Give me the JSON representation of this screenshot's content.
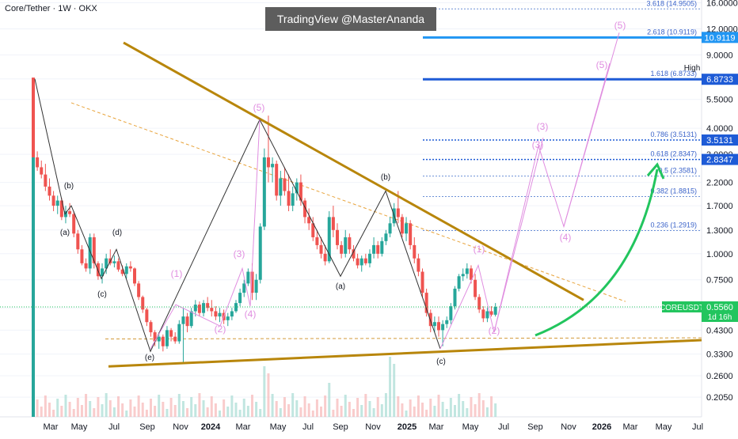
{
  "header": {
    "ticker": "Core/Tether · 1W · OKX",
    "watermark": "TradingView @MasterAnanda"
  },
  "chart_data": {
    "type": "candlestick",
    "title": "Core/Tether · 1W · OKX",
    "yscale": "log",
    "ylim": [
      0.165,
      16.5
    ],
    "y_ticks": [
      "16.0000",
      "12.0000",
      "9.0000",
      "6.9000",
      "5.5000",
      "4.0000",
      "3.0000",
      "2.2000",
      "1.7000",
      "1.3000",
      "1.0000",
      "0.7500",
      "0.5500",
      "0.4300",
      "0.3300",
      "0.2600",
      "0.2050"
    ],
    "x_ticks": [
      "Mar",
      "May",
      "Jul",
      "Sep",
      "Nov",
      "2024",
      "Mar",
      "May",
      "Jul",
      "Sep",
      "Nov",
      "2025",
      "Mar",
      "May",
      "Jul",
      "Sep",
      "Nov",
      "2026",
      "Mar",
      "May",
      "Jul"
    ],
    "last_price": {
      "symbol": "COREUSDT",
      "value": "0.5560",
      "countdown": "1d 16h",
      "color": "#22c55e"
    },
    "high_label": {
      "label": "High",
      "value": "6.9000"
    },
    "fib_levels": [
      {
        "ratio": "3.618",
        "price": "14.9505",
        "label": "3.618 (14.9505)"
      },
      {
        "ratio": "2.618",
        "price": "10.9119",
        "label": "2.618 (10.9119)",
        "tag": "10.9119",
        "color": "#2196f3"
      },
      {
        "ratio": "1.618",
        "price": "6.8733",
        "label": "1.618 (6.8733)",
        "tag": "6.8733",
        "color": "#1e5bd6"
      },
      {
        "ratio": "0.786",
        "price": "3.5131",
        "label": "0.786 (3.5131)",
        "tag": "3.5131",
        "color": "#1e5bd6"
      },
      {
        "ratio": "0.618",
        "price": "2.8347",
        "label": "0.618 (2.8347)",
        "tag": "2.8347",
        "color": "#1e5bd6"
      },
      {
        "ratio": "0.5",
        "price": "2.3581",
        "label": "0.5 (2.3581)"
      },
      {
        "ratio": "0.382",
        "price": "1.8815",
        "label": "0.382 (1.8815)"
      },
      {
        "ratio": "0.236",
        "price": "1.2919",
        "label": "0.236 (1.2919)"
      }
    ],
    "wave_labels_black": [
      "(b)",
      "(a)",
      "(d)",
      "(c)",
      "(e)",
      "(b)",
      "(a)",
      "(c)"
    ],
    "wave_labels_pink": [
      "(1)",
      "(2)",
      "(3)",
      "(4)",
      "(5)",
      "(1)",
      "(2)",
      "(3)",
      "(3)",
      "(4)",
      "(5)",
      "(5)"
    ],
    "colors": {
      "up": "#26a69a",
      "down": "#ef5350",
      "trendline": "#b8860b",
      "wave": "#e08ee0",
      "arrow": "#22c55e"
    },
    "candles": [
      [
        7.0,
        7.0,
        2.5,
        2.9
      ],
      [
        2.9,
        3.1,
        2.5,
        2.6
      ],
      [
        2.6,
        2.8,
        2.3,
        2.4
      ],
      [
        2.4,
        2.7,
        2.0,
        2.1
      ],
      [
        2.1,
        2.3,
        1.8,
        1.9
      ],
      [
        1.9,
        2.0,
        1.6,
        1.7
      ],
      [
        1.7,
        1.9,
        1.55,
        1.8
      ],
      [
        1.8,
        1.85,
        1.45,
        1.5
      ],
      [
        1.5,
        1.7,
        1.4,
        1.6
      ],
      [
        1.6,
        1.75,
        1.5,
        1.55
      ],
      [
        1.55,
        1.6,
        1.2,
        1.25
      ],
      [
        1.25,
        1.3,
        1.0,
        1.05
      ],
      [
        1.05,
        1.1,
        0.88,
        0.9
      ],
      [
        0.9,
        0.95,
        0.82,
        0.85
      ],
      [
        0.85,
        1.25,
        0.8,
        1.2
      ],
      [
        1.2,
        1.25,
        0.85,
        0.9
      ],
      [
        0.9,
        0.92,
        0.75,
        0.78
      ],
      [
        0.78,
        0.9,
        0.72,
        0.85
      ],
      [
        0.85,
        1.0,
        0.8,
        0.95
      ],
      [
        0.95,
        1.05,
        0.88,
        0.9
      ],
      [
        0.9,
        0.98,
        0.86,
        0.92
      ],
      [
        0.92,
        0.95,
        0.82,
        0.84
      ],
      [
        0.84,
        0.88,
        0.78,
        0.8
      ],
      [
        0.8,
        0.9,
        0.76,
        0.87
      ],
      [
        0.87,
        0.92,
        0.82,
        0.85
      ],
      [
        0.85,
        0.86,
        0.7,
        0.72
      ],
      [
        0.72,
        0.74,
        0.6,
        0.62
      ],
      [
        0.62,
        0.63,
        0.52,
        0.54
      ],
      [
        0.54,
        0.55,
        0.45,
        0.47
      ],
      [
        0.47,
        0.48,
        0.4,
        0.42
      ],
      [
        0.42,
        0.43,
        0.36,
        0.38
      ],
      [
        0.38,
        0.42,
        0.35,
        0.4
      ],
      [
        0.4,
        0.41,
        0.34,
        0.36
      ],
      [
        0.36,
        0.45,
        0.35,
        0.43
      ],
      [
        0.43,
        0.44,
        0.38,
        0.4
      ],
      [
        0.4,
        0.42,
        0.37,
        0.38
      ],
      [
        0.38,
        0.48,
        0.37,
        0.46
      ],
      [
        0.46,
        0.55,
        0.3,
        0.5
      ],
      [
        0.5,
        0.52,
        0.42,
        0.45
      ],
      [
        0.45,
        0.55,
        0.44,
        0.53
      ],
      [
        0.53,
        0.6,
        0.5,
        0.57
      ],
      [
        0.57,
        0.59,
        0.5,
        0.52
      ],
      [
        0.52,
        0.6,
        0.5,
        0.58
      ],
      [
        0.58,
        0.62,
        0.53,
        0.55
      ],
      [
        0.55,
        0.6,
        0.5,
        0.53
      ],
      [
        0.53,
        0.56,
        0.48,
        0.5
      ],
      [
        0.5,
        0.55,
        0.47,
        0.52
      ],
      [
        0.52,
        0.54,
        0.46,
        0.48
      ],
      [
        0.48,
        0.52,
        0.45,
        0.5
      ],
      [
        0.5,
        0.55,
        0.48,
        0.53
      ],
      [
        0.53,
        0.6,
        0.52,
        0.58
      ],
      [
        0.58,
        0.68,
        0.56,
        0.65
      ],
      [
        0.65,
        0.75,
        0.62,
        0.72
      ],
      [
        0.72,
        0.85,
        0.7,
        0.82
      ],
      [
        0.82,
        0.9,
        0.6,
        0.65
      ],
      [
        0.65,
        0.8,
        0.6,
        0.75
      ],
      [
        0.75,
        1.4,
        0.72,
        1.35
      ],
      [
        1.35,
        3.2,
        1.3,
        2.9
      ],
      [
        2.9,
        4.6,
        2.2,
        2.6
      ],
      [
        2.6,
        2.9,
        2.2,
        2.7
      ],
      [
        2.7,
        2.8,
        1.8,
        1.9
      ],
      [
        1.9,
        2.5,
        1.7,
        2.3
      ],
      [
        2.3,
        2.6,
        1.9,
        2.0
      ],
      [
        2.0,
        2.4,
        1.6,
        1.7
      ],
      [
        1.7,
        2.1,
        1.6,
        1.95
      ],
      [
        1.95,
        2.3,
        1.8,
        2.2
      ],
      [
        2.2,
        2.4,
        1.7,
        1.8
      ],
      [
        1.8,
        1.85,
        1.4,
        1.5
      ],
      [
        1.5,
        1.65,
        1.3,
        1.4
      ],
      [
        1.4,
        1.5,
        1.15,
        1.2
      ],
      [
        1.2,
        1.3,
        1.05,
        1.1
      ],
      [
        1.1,
        1.2,
        0.95,
        1.0
      ],
      [
        1.0,
        1.1,
        0.88,
        0.92
      ],
      [
        0.92,
        1.6,
        0.9,
        1.5
      ],
      [
        1.5,
        1.7,
        1.2,
        1.3
      ],
      [
        1.3,
        1.4,
        1.05,
        1.1
      ],
      [
        1.1,
        1.15,
        0.95,
        1.0
      ],
      [
        1.0,
        1.3,
        0.96,
        1.2
      ],
      [
        1.2,
        1.25,
        1.0,
        1.05
      ],
      [
        1.05,
        1.1,
        0.92,
        0.95
      ],
      [
        0.95,
        1.0,
        0.85,
        0.88
      ],
      [
        0.88,
        0.98,
        0.82,
        0.95
      ],
      [
        0.95,
        1.0,
        0.88,
        0.9
      ],
      [
        0.9,
        1.05,
        0.86,
        1.0
      ],
      [
        1.0,
        1.2,
        0.95,
        1.1
      ],
      [
        1.1,
        1.15,
        0.95,
        1.0
      ],
      [
        1.0,
        1.2,
        0.97,
        1.15
      ],
      [
        1.15,
        1.3,
        1.1,
        1.25
      ],
      [
        1.25,
        1.5,
        1.2,
        1.4
      ],
      [
        1.4,
        1.75,
        1.35,
        1.65
      ],
      [
        1.65,
        2.0,
        1.4,
        1.5
      ],
      [
        1.5,
        1.55,
        1.2,
        1.25
      ],
      [
        1.25,
        1.5,
        1.15,
        1.4
      ],
      [
        1.4,
        1.45,
        1.05,
        1.1
      ],
      [
        1.1,
        1.2,
        0.9,
        0.95
      ],
      [
        0.95,
        1.0,
        0.78,
        0.82
      ],
      [
        0.82,
        0.85,
        0.62,
        0.65
      ],
      [
        0.65,
        0.68,
        0.5,
        0.52
      ],
      [
        0.52,
        0.54,
        0.42,
        0.45
      ],
      [
        0.45,
        0.5,
        0.42,
        0.47
      ],
      [
        0.47,
        0.5,
        0.4,
        0.43
      ],
      [
        0.43,
        0.48,
        0.36,
        0.46
      ],
      [
        0.46,
        0.5,
        0.44,
        0.48
      ],
      [
        0.48,
        0.58,
        0.46,
        0.56
      ],
      [
        0.56,
        0.7,
        0.54,
        0.68
      ],
      [
        0.68,
        0.8,
        0.66,
        0.78
      ],
      [
        0.78,
        0.85,
        0.74,
        0.8
      ],
      [
        0.8,
        0.9,
        0.76,
        0.85
      ],
      [
        0.85,
        0.88,
        0.72,
        0.75
      ],
      [
        0.75,
        0.8,
        0.6,
        0.62
      ],
      [
        0.62,
        0.64,
        0.52,
        0.54
      ],
      [
        0.54,
        0.56,
        0.47,
        0.49
      ],
      [
        0.49,
        0.55,
        0.47,
        0.53
      ],
      [
        0.53,
        0.56,
        0.5,
        0.51
      ],
      [
        0.51,
        0.58,
        0.5,
        0.556
      ]
    ]
  }
}
